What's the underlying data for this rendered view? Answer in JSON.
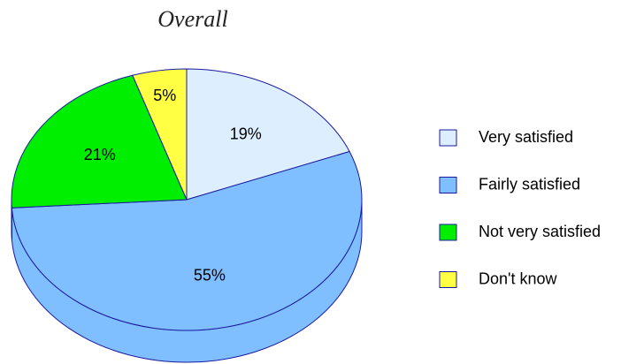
{
  "chart_data": {
    "type": "pie",
    "title": "Overall",
    "categories": [
      "Very satisfied",
      "Fairly satisfied",
      "Not very satisfied",
      "Don't know"
    ],
    "values": [
      19,
      55,
      21,
      5
    ],
    "value_labels": [
      "19%",
      "55%",
      "21%",
      "5%"
    ],
    "colors": [
      "#ddeeff",
      "#80bfff",
      "#00ee00",
      "#ffff44"
    ],
    "legend": "right"
  }
}
